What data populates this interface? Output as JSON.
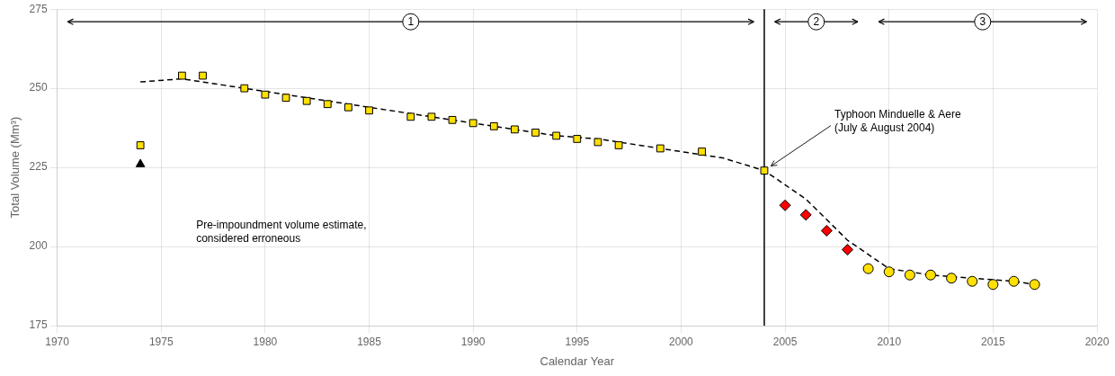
{
  "chart_data": {
    "type": "scatter",
    "xlabel": "Calendar Year",
    "ylabel": "Total Volume (Mm³)",
    "xlim": [
      1970,
      2020
    ],
    "ylim": [
      175,
      275
    ],
    "xticks": [
      1970,
      1975,
      1980,
      1985,
      1990,
      1995,
      2000,
      2005,
      2010,
      2015,
      2020
    ],
    "yticks": [
      175,
      200,
      225,
      250,
      275
    ],
    "grid": true,
    "vline": 2004,
    "vline_color": "#000000",
    "periods": [
      {
        "label": "1",
        "range": [
          1970.5,
          2003.5
        ]
      },
      {
        "label": "2",
        "range": [
          2004.5,
          2008.5
        ]
      },
      {
        "label": "3",
        "range": [
          2009.5,
          2019.5
        ]
      }
    ],
    "series": [
      {
        "type": "line",
        "color": "#000000",
        "line_style": "dashed",
        "marker": "none",
        "x": [
          1974,
          1976,
          1978,
          1980,
          1982,
          1984,
          1986,
          1988,
          1990,
          1992,
          1994,
          1996,
          1998,
          2000,
          2002,
          2004,
          2006,
          2008,
          2010,
          2012,
          2014,
          2016,
          2017
        ],
        "values": [
          252,
          253,
          251,
          249,
          247,
          245,
          243,
          241,
          239,
          237,
          235,
          234,
          232,
          230,
          228,
          224,
          215,
          202,
          193,
          191,
          190,
          189,
          188
        ]
      },
      {
        "type": "scatter",
        "color": "#FFE000",
        "marker": "square",
        "x": [
          1974,
          1976,
          1977,
          1979,
          1980,
          1981,
          1982,
          1983,
          1984,
          1985,
          1987,
          1988,
          1989,
          1990,
          1991,
          1992,
          1993,
          1994,
          1995,
          1996,
          1997,
          1999,
          2001,
          2004
        ],
        "values": [
          232,
          254,
          254,
          250,
          248,
          247,
          246,
          245,
          244,
          243,
          241,
          241,
          240,
          239,
          238,
          237,
          236,
          235,
          234,
          233,
          232,
          231,
          230,
          224
        ],
        "annotation": "Typhoon Minduelle & Aere\n(July & August 2004)"
      },
      {
        "type": "scatter",
        "color": "#000000",
        "marker": "triangle",
        "x": [
          1974
        ],
        "values": [
          226
        ],
        "annotation": "Pre-impoundment volume estimate,\nconsidered erroneous"
      },
      {
        "type": "scatter",
        "color": "#FF0000",
        "marker": "diamond",
        "x": [
          2005,
          2006,
          2007,
          2008
        ],
        "values": [
          213,
          210,
          205,
          199
        ]
      },
      {
        "type": "scatter",
        "color": "#FFE000",
        "marker": "circle",
        "x": [
          2009,
          2010,
          2011,
          2012,
          2013,
          2014,
          2015,
          2016,
          2017
        ],
        "values": [
          193,
          192,
          191,
          191,
          190,
          189,
          188,
          189,
          188
        ]
      }
    ]
  }
}
